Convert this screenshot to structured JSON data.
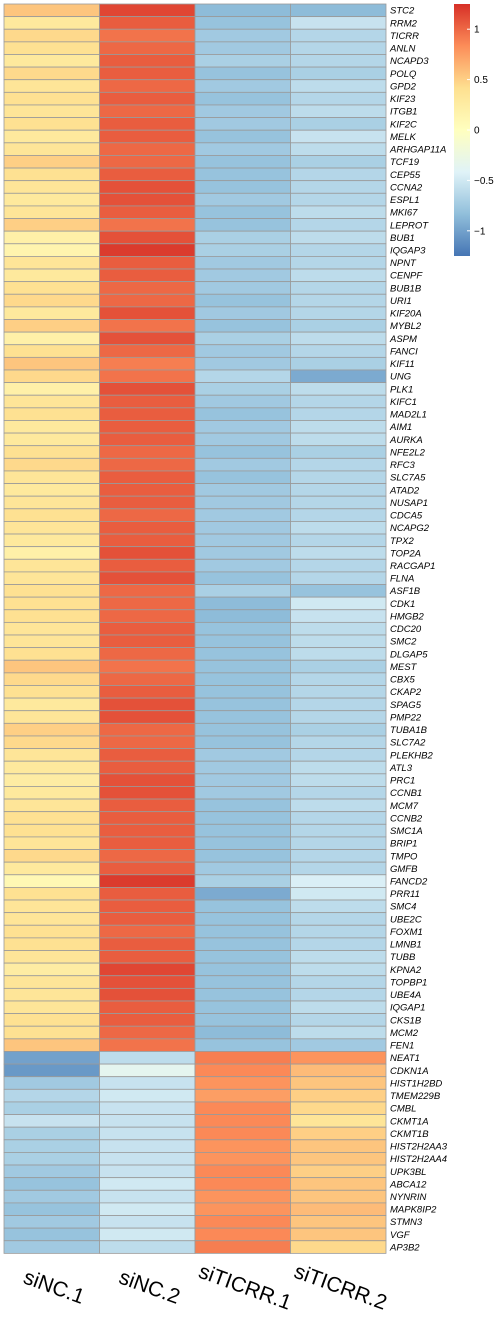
{
  "chart_data": {
    "type": "heatmap",
    "columns": [
      "siNC.1",
      "siNC.2",
      "siTICRR.1",
      "siTICRR.2"
    ],
    "rows": [
      {
        "gene": "STC2",
        "values": [
          0.55,
          1.15,
          -0.85,
          -0.85
        ]
      },
      {
        "gene": "RRM2",
        "values": [
          0.3,
          1.05,
          -0.8,
          -0.55
        ]
      },
      {
        "gene": "TICRR",
        "values": [
          0.45,
          0.95,
          -0.75,
          -0.65
        ]
      },
      {
        "gene": "ANLN",
        "values": [
          0.4,
          1.0,
          -0.75,
          -0.65
        ]
      },
      {
        "gene": "NCAPD3",
        "values": [
          0.3,
          1.05,
          -0.7,
          -0.65
        ]
      },
      {
        "gene": "POLQ",
        "values": [
          0.45,
          1.05,
          -0.8,
          -0.7
        ]
      },
      {
        "gene": "GPD2",
        "values": [
          0.35,
          1.0,
          -0.75,
          -0.6
        ]
      },
      {
        "gene": "KIF23",
        "values": [
          0.4,
          1.05,
          -0.8,
          -0.65
        ]
      },
      {
        "gene": "ITGB1",
        "values": [
          0.35,
          1.0,
          -0.75,
          -0.6
        ]
      },
      {
        "gene": "KIF2C",
        "values": [
          0.4,
          1.05,
          -0.75,
          -0.7
        ]
      },
      {
        "gene": "MELK",
        "values": [
          0.3,
          1.05,
          -0.8,
          -0.55
        ]
      },
      {
        "gene": "ARHGAP11A",
        "values": [
          0.35,
          1.0,
          -0.75,
          -0.6
        ]
      },
      {
        "gene": "TCF19",
        "values": [
          0.5,
          1.0,
          -0.8,
          -0.7
        ]
      },
      {
        "gene": "CEP55",
        "values": [
          0.4,
          1.05,
          -0.8,
          -0.65
        ]
      },
      {
        "gene": "CCNA2",
        "values": [
          0.35,
          1.1,
          -0.8,
          -0.65
        ]
      },
      {
        "gene": "ESPL1",
        "values": [
          0.3,
          1.1,
          -0.75,
          -0.65
        ]
      },
      {
        "gene": "MKI67",
        "values": [
          0.35,
          1.05,
          -0.8,
          -0.6
        ]
      },
      {
        "gene": "LEPROT",
        "values": [
          0.5,
          0.95,
          -0.8,
          -0.65
        ]
      },
      {
        "gene": "BUB1",
        "values": [
          0.2,
          1.1,
          -0.7,
          -0.6
        ]
      },
      {
        "gene": "IQGAP3",
        "values": [
          0.15,
          1.2,
          -0.7,
          -0.65
        ]
      },
      {
        "gene": "NPNT",
        "values": [
          0.35,
          1.05,
          -0.75,
          -0.65
        ]
      },
      {
        "gene": "CENPF",
        "values": [
          0.3,
          1.05,
          -0.75,
          -0.6
        ]
      },
      {
        "gene": "BUB1B",
        "values": [
          0.4,
          1.0,
          -0.75,
          -0.65
        ]
      },
      {
        "gene": "URI1",
        "values": [
          0.45,
          1.0,
          -0.8,
          -0.65
        ]
      },
      {
        "gene": "KIF20A",
        "values": [
          0.3,
          1.1,
          -0.75,
          -0.65
        ]
      },
      {
        "gene": "MYBL2",
        "values": [
          0.5,
          0.95,
          -0.8,
          -0.7
        ]
      },
      {
        "gene": "ASPM",
        "values": [
          0.2,
          1.1,
          -0.7,
          -0.6
        ]
      },
      {
        "gene": "FANCI",
        "values": [
          0.4,
          1.0,
          -0.75,
          -0.65
        ]
      },
      {
        "gene": "KIF11",
        "values": [
          0.55,
          0.9,
          -0.75,
          -0.7
        ]
      },
      {
        "gene": "UNG",
        "values": [
          0.45,
          0.95,
          -0.65,
          -0.95
        ]
      },
      {
        "gene": "PLK1",
        "values": [
          0.2,
          1.1,
          -0.7,
          -0.6
        ]
      },
      {
        "gene": "KIFC1",
        "values": [
          0.35,
          1.05,
          -0.75,
          -0.65
        ]
      },
      {
        "gene": "MAD2L1",
        "values": [
          0.4,
          1.05,
          -0.8,
          -0.65
        ]
      },
      {
        "gene": "AIM1",
        "values": [
          0.3,
          1.05,
          -0.75,
          -0.6
        ]
      },
      {
        "gene": "AURKA",
        "values": [
          0.3,
          1.05,
          -0.75,
          -0.6
        ]
      },
      {
        "gene": "NFE2L2",
        "values": [
          0.4,
          1.0,
          -0.8,
          -0.7
        ]
      },
      {
        "gene": "RFC3",
        "values": [
          0.45,
          1.0,
          -0.75,
          -0.65
        ]
      },
      {
        "gene": "SLC7A5",
        "values": [
          0.35,
          1.05,
          -0.8,
          -0.65
        ]
      },
      {
        "gene": "ATAD2",
        "values": [
          0.3,
          1.05,
          -0.75,
          -0.65
        ]
      },
      {
        "gene": "NUSAP1",
        "values": [
          0.35,
          1.05,
          -0.75,
          -0.65
        ]
      },
      {
        "gene": "CDCA5",
        "values": [
          0.4,
          1.0,
          -0.75,
          -0.65
        ]
      },
      {
        "gene": "NCAPG2",
        "values": [
          0.35,
          1.05,
          -0.75,
          -0.6
        ]
      },
      {
        "gene": "TPX2",
        "values": [
          0.3,
          1.05,
          -0.75,
          -0.65
        ]
      },
      {
        "gene": "TOP2A",
        "values": [
          0.2,
          1.1,
          -0.75,
          -0.6
        ]
      },
      {
        "gene": "RACGAP1",
        "values": [
          0.35,
          1.05,
          -0.75,
          -0.65
        ]
      },
      {
        "gene": "FLNA",
        "values": [
          0.35,
          1.1,
          -0.8,
          -0.65
        ]
      },
      {
        "gene": "ASF1B",
        "values": [
          0.4,
          1.0,
          -0.7,
          -0.8
        ]
      },
      {
        "gene": "CDK1",
        "values": [
          0.4,
          1.0,
          -0.85,
          -0.5
        ]
      },
      {
        "gene": "HMGB2",
        "values": [
          0.4,
          1.0,
          -0.85,
          -0.55
        ]
      },
      {
        "gene": "CDC20",
        "values": [
          0.35,
          1.05,
          -0.8,
          -0.6
        ]
      },
      {
        "gene": "SMC2",
        "values": [
          0.35,
          1.05,
          -0.8,
          -0.6
        ]
      },
      {
        "gene": "DLGAP5",
        "values": [
          0.4,
          1.0,
          -0.8,
          -0.6
        ]
      },
      {
        "gene": "MEST",
        "values": [
          0.55,
          0.95,
          -0.8,
          -0.7
        ]
      },
      {
        "gene": "CBX5",
        "values": [
          0.45,
          1.0,
          -0.8,
          -0.65
        ]
      },
      {
        "gene": "CKAP2",
        "values": [
          0.4,
          1.05,
          -0.8,
          -0.65
        ]
      },
      {
        "gene": "SPAG5",
        "values": [
          0.3,
          1.1,
          -0.8,
          -0.65
        ]
      },
      {
        "gene": "PMP22",
        "values": [
          0.35,
          1.1,
          -0.8,
          -0.65
        ]
      },
      {
        "gene": "TUBA1B",
        "values": [
          0.5,
          1.0,
          -0.8,
          -0.7
        ]
      },
      {
        "gene": "SLC7A2",
        "values": [
          0.45,
          1.0,
          -0.8,
          -0.65
        ]
      },
      {
        "gene": "PLEKHB2",
        "values": [
          0.35,
          1.05,
          -0.75,
          -0.65
        ]
      },
      {
        "gene": "ATL3",
        "values": [
          0.3,
          1.05,
          -0.75,
          -0.6
        ]
      },
      {
        "gene": "PRC1",
        "values": [
          0.25,
          1.1,
          -0.75,
          -0.6
        ]
      },
      {
        "gene": "CCNB1",
        "values": [
          0.3,
          1.1,
          -0.75,
          -0.65
        ]
      },
      {
        "gene": "MCM7",
        "values": [
          0.35,
          1.05,
          -0.8,
          -0.6
        ]
      },
      {
        "gene": "CCNB2",
        "values": [
          0.4,
          1.05,
          -0.8,
          -0.65
        ]
      },
      {
        "gene": "SMC1A",
        "values": [
          0.4,
          1.05,
          -0.8,
          -0.65
        ]
      },
      {
        "gene": "BRIP1",
        "values": [
          0.35,
          1.05,
          -0.8,
          -0.65
        ]
      },
      {
        "gene": "TMPO",
        "values": [
          0.45,
          1.0,
          -0.8,
          -0.65
        ]
      },
      {
        "gene": "GMFB",
        "values": [
          0.3,
          1.05,
          -0.75,
          -0.65
        ]
      },
      {
        "gene": "FANCD2",
        "values": [
          0.1,
          1.2,
          -0.7,
          -0.45
        ]
      },
      {
        "gene": "PRR11",
        "values": [
          0.4,
          1.05,
          -0.95,
          -0.5
        ]
      },
      {
        "gene": "SMC4",
        "values": [
          0.35,
          1.05,
          -0.8,
          -0.6
        ]
      },
      {
        "gene": "UBE2C",
        "values": [
          0.35,
          1.05,
          -0.8,
          -0.65
        ]
      },
      {
        "gene": "FOXM1",
        "values": [
          0.4,
          1.0,
          -0.8,
          -0.65
        ]
      },
      {
        "gene": "LMNB1",
        "values": [
          0.4,
          1.05,
          -0.8,
          -0.65
        ]
      },
      {
        "gene": "TUBB",
        "values": [
          0.35,
          1.05,
          -0.8,
          -0.6
        ]
      },
      {
        "gene": "KPNA2",
        "values": [
          0.25,
          1.15,
          -0.8,
          -0.6
        ]
      },
      {
        "gene": "TOPBP1",
        "values": [
          0.35,
          1.1,
          -0.8,
          -0.65
        ]
      },
      {
        "gene": "UBE4A",
        "values": [
          0.35,
          1.1,
          -0.8,
          -0.65
        ]
      },
      {
        "gene": "IQGAP1",
        "values": [
          0.35,
          1.05,
          -0.8,
          -0.6
        ]
      },
      {
        "gene": "CKS1B",
        "values": [
          0.4,
          1.05,
          -0.8,
          -0.65
        ]
      },
      {
        "gene": "MCM2",
        "values": [
          0.4,
          1.0,
          -0.85,
          -0.6
        ]
      },
      {
        "gene": "FEN1",
        "values": [
          0.55,
          0.95,
          -0.8,
          -0.75
        ]
      },
      {
        "gene": "NEAT1",
        "values": [
          -1.0,
          -0.6,
          0.9,
          0.8
        ]
      },
      {
        "gene": "CDKN1A",
        "values": [
          -1.05,
          -0.35,
          0.85,
          0.6
        ]
      },
      {
        "gene": "HIST1H2BD",
        "values": [
          -0.75,
          -0.55,
          0.8,
          0.55
        ]
      },
      {
        "gene": "TMEM229B",
        "values": [
          -0.65,
          -0.5,
          0.75,
          0.5
        ]
      },
      {
        "gene": "CMBL",
        "values": [
          -0.7,
          -0.55,
          0.85,
          0.45
        ]
      },
      {
        "gene": "CKMT1A",
        "values": [
          -0.55,
          -0.55,
          0.85,
          0.35
        ]
      },
      {
        "gene": "CKMT1B",
        "values": [
          -0.7,
          -0.55,
          0.85,
          0.5
        ]
      },
      {
        "gene": "HIST2H2AA3",
        "values": [
          -0.7,
          -0.55,
          0.8,
          0.55
        ]
      },
      {
        "gene": "HIST2H2AA4",
        "values": [
          -0.7,
          -0.55,
          0.8,
          0.55
        ]
      },
      {
        "gene": "UPK3BL",
        "values": [
          -0.75,
          -0.55,
          0.85,
          0.5
        ]
      },
      {
        "gene": "ABCA12",
        "values": [
          -0.8,
          -0.5,
          0.85,
          0.55
        ]
      },
      {
        "gene": "NYNRIN",
        "values": [
          -0.75,
          -0.55,
          0.8,
          0.55
        ]
      },
      {
        "gene": "MAPK8IP2",
        "values": [
          -0.8,
          -0.5,
          0.8,
          0.6
        ]
      },
      {
        "gene": "STMN3",
        "values": [
          -0.75,
          -0.55,
          0.85,
          0.55
        ]
      },
      {
        "gene": "VGF",
        "values": [
          -0.8,
          -0.5,
          0.85,
          0.55
        ]
      },
      {
        "gene": "AP3B2",
        "values": [
          -0.75,
          -0.6,
          0.9,
          0.45
        ]
      }
    ],
    "color_scale": {
      "min": -1.25,
      "max": 1.25,
      "colors": [
        "#4575b4",
        "#91bfdb",
        "#e0f3f8",
        "#ffffbf",
        "#fee090",
        "#fc8d59",
        "#d73027"
      ]
    },
    "legend": {
      "ticks": [
        1,
        0.5,
        0,
        -0.5,
        -1
      ],
      "tick_labels": [
        "1",
        "0.5",
        "0",
        "−0.5",
        "−1"
      ],
      "position": "top-right"
    },
    "cell_border_color": "#9a9a9a"
  }
}
